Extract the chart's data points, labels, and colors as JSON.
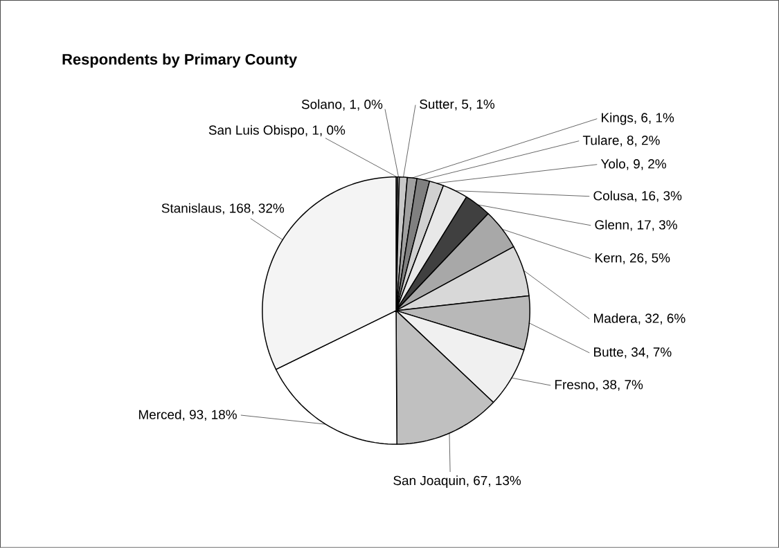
{
  "chart_data": {
    "type": "pie",
    "title": "Respondents by Primary County",
    "categories": [
      "San Luis Obispo",
      "Solano",
      "Sutter",
      "Kings",
      "Tulare",
      "Yolo",
      "Colusa",
      "Glenn",
      "Kern",
      "Madera",
      "Butte",
      "Fresno",
      "San Joaquin",
      "Merced",
      "Stanislaus"
    ],
    "values": [
      1,
      1,
      5,
      6,
      8,
      9,
      16,
      17,
      26,
      32,
      34,
      38,
      67,
      93,
      168
    ],
    "value_labels": [
      ", 1, 0%",
      ", 1, 0%",
      ", 5, 1%",
      ", 6, 1%",
      ", 8, 2%",
      ", 9, 2%",
      ", 16, 3%",
      ", 17, 3%",
      ", 26, 5%",
      ", 32, 6%",
      ", 34, 7%",
      ", 38, 7%",
      ", 67, 13%",
      ", 93, 18%",
      ", 168, 32%"
    ],
    "colors": [
      "#d8d8d8",
      "#ffffff",
      "#c8c8c8",
      "#a0a0a0",
      "#808080",
      "#d0d0d0",
      "#e8e8e8",
      "#404040",
      "#a8a8a8",
      "#d8d8d8",
      "#b8b8b8",
      "#f0f0f0",
      "#c0c0c0",
      "#ffffff",
      "#f4f4f4"
    ]
  }
}
